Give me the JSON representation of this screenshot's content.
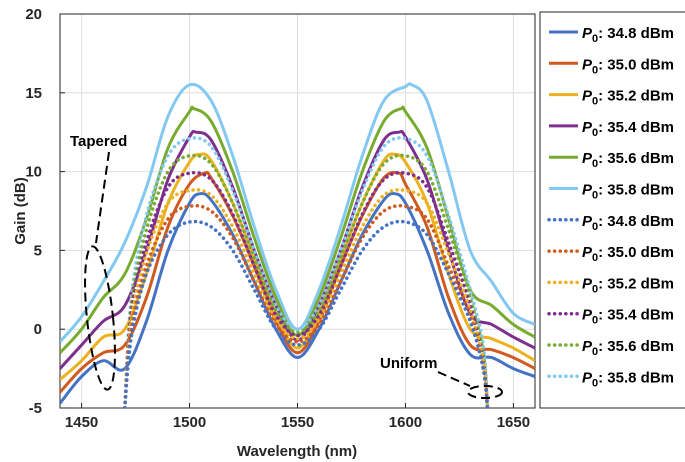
{
  "chart_data": {
    "type": "line",
    "title": "",
    "xlabel": "Wavelength (nm)",
    "ylabel": "Gain (dB)",
    "xlim": [
      1440,
      1660
    ],
    "ylim": [
      -5,
      20
    ],
    "xticks": [
      1450,
      1500,
      1550,
      1600,
      1650
    ],
    "yticks": [
      -5,
      0,
      5,
      10,
      15,
      20
    ],
    "grid": true,
    "legend_position": "outside-right",
    "annotations": [
      {
        "text": "Tapered",
        "target": "solid curves near 1455 nm"
      },
      {
        "text": "Uniform",
        "target": "dotted curves near 1638 nm"
      }
    ],
    "series": [
      {
        "name": "P0: 34.8 dBm",
        "legend_label": "34.8 dBm",
        "color": "#4472C4",
        "style": "solid",
        "x": [
          1440,
          1450,
          1460,
          1470,
          1480,
          1490,
          1500,
          1505,
          1510,
          1520,
          1530,
          1540,
          1550,
          1560,
          1570,
          1580,
          1590,
          1595,
          1600,
          1610,
          1620,
          1630,
          1640,
          1650,
          1660
        ],
        "y": [
          -4.7,
          -3.0,
          -2.0,
          -2.5,
          0.5,
          5.0,
          8.0,
          8.6,
          8.2,
          6.0,
          3.0,
          0.0,
          -1.8,
          0.0,
          3.0,
          6.0,
          8.2,
          8.6,
          8.0,
          5.0,
          1.0,
          -1.6,
          -1.8,
          -2.5,
          -3.0
        ]
      },
      {
        "name": "P0: 35.0 dBm",
        "legend_label": "35.0 dBm",
        "color": "#D05A1F",
        "style": "solid",
        "x": [
          1440,
          1450,
          1460,
          1470,
          1480,
          1490,
          1500,
          1507,
          1510,
          1520,
          1530,
          1540,
          1550,
          1560,
          1570,
          1580,
          1590,
          1597,
          1600,
          1610,
          1620,
          1630,
          1640,
          1650,
          1660
        ],
        "y": [
          -4.0,
          -2.5,
          -1.5,
          -1.0,
          2.0,
          6.5,
          9.2,
          9.9,
          9.6,
          7.2,
          4.0,
          0.5,
          -1.5,
          0.5,
          4.0,
          7.2,
          9.6,
          9.9,
          9.2,
          6.5,
          2.0,
          -1.0,
          -1.3,
          -1.8,
          -2.5
        ]
      },
      {
        "name": "P0: 35.2 dBm",
        "legend_label": "35.2 dBm",
        "color": "#EDB120",
        "style": "solid",
        "x": [
          1440,
          1450,
          1460,
          1470,
          1480,
          1490,
          1500,
          1505,
          1510,
          1520,
          1530,
          1540,
          1550,
          1560,
          1570,
          1580,
          1590,
          1595,
          1600,
          1610,
          1620,
          1630,
          1640,
          1650,
          1660
        ],
        "y": [
          -3.2,
          -2.0,
          -0.5,
          0.0,
          3.5,
          8.0,
          10.6,
          11.1,
          10.7,
          8.0,
          4.5,
          1.0,
          -1.2,
          1.0,
          4.5,
          8.0,
          10.7,
          11.1,
          10.6,
          8.0,
          3.5,
          0.0,
          -0.6,
          -1.2,
          -2.0
        ]
      },
      {
        "name": "P0: 35.4 dBm",
        "legend_label": "35.4 dBm",
        "color": "#7E2F8E",
        "style": "solid",
        "x": [
          1440,
          1450,
          1460,
          1470,
          1480,
          1490,
          1500,
          1503,
          1510,
          1520,
          1530,
          1540,
          1550,
          1560,
          1570,
          1580,
          1590,
          1597,
          1600,
          1610,
          1620,
          1630,
          1640,
          1650,
          1660
        ],
        "y": [
          -2.5,
          -1.0,
          0.5,
          1.5,
          5.0,
          9.5,
          12.2,
          12.5,
          12.0,
          9.0,
          5.0,
          1.5,
          -0.7,
          1.5,
          5.0,
          9.0,
          12.0,
          12.5,
          12.2,
          9.5,
          5.0,
          1.0,
          0.3,
          -0.5,
          -1.2
        ]
      },
      {
        "name": "P0: 35.6 dBm",
        "legend_label": "35.6 dBm",
        "color": "#77AC30",
        "style": "solid",
        "x": [
          1440,
          1450,
          1460,
          1470,
          1480,
          1490,
          1500,
          1502,
          1510,
          1520,
          1530,
          1540,
          1550,
          1560,
          1570,
          1580,
          1590,
          1598,
          1600,
          1610,
          1620,
          1630,
          1640,
          1650,
          1660
        ],
        "y": [
          -1.5,
          0.0,
          2.0,
          3.5,
          7.0,
          11.5,
          13.8,
          14.0,
          13.2,
          10.0,
          5.8,
          2.0,
          -0.4,
          2.0,
          5.8,
          10.0,
          13.2,
          14.0,
          13.8,
          11.5,
          7.0,
          2.5,
          1.5,
          0.3,
          -0.5
        ]
      },
      {
        "name": "P0: 35.8 dBm",
        "legend_label": "35.8 dBm",
        "color": "#82C8F0",
        "style": "solid",
        "x": [
          1440,
          1450,
          1460,
          1470,
          1480,
          1490,
          1500,
          1510,
          1520,
          1530,
          1540,
          1550,
          1560,
          1570,
          1580,
          1590,
          1600,
          1603,
          1610,
          1620,
          1630,
          1640,
          1650,
          1660
        ],
        "y": [
          -0.8,
          0.8,
          3.0,
          5.5,
          9.0,
          13.5,
          15.5,
          14.5,
          11.0,
          6.5,
          2.5,
          0.0,
          2.5,
          6.5,
          11.0,
          14.5,
          15.4,
          15.5,
          14.5,
          10.0,
          5.0,
          3.0,
          1.0,
          0.3
        ]
      },
      {
        "name": "P0: 34.8 dBm",
        "legend_label": "34.8 dBm",
        "color": "#4472C4",
        "style": "dotted",
        "x": [
          1470,
          1473,
          1480,
          1490,
          1500,
          1510,
          1520,
          1530,
          1540,
          1550,
          1560,
          1570,
          1580,
          1590,
          1600,
          1610,
          1620,
          1630,
          1636,
          1638
        ],
        "y": [
          -5.0,
          -0.5,
          3.5,
          6.0,
          6.8,
          6.5,
          5.0,
          2.5,
          0.0,
          -1.0,
          0.0,
          2.5,
          5.0,
          6.5,
          6.8,
          6.0,
          3.5,
          0.5,
          -2.5,
          -5.0
        ]
      },
      {
        "name": "P0: 35.0 dBm",
        "legend_label": "35.0 dBm",
        "color": "#D05A1F",
        "style": "dotted",
        "x": [
          1470,
          1473,
          1480,
          1490,
          1500,
          1510,
          1520,
          1530,
          1540,
          1550,
          1560,
          1570,
          1580,
          1590,
          1600,
          1610,
          1620,
          1630,
          1636,
          1638
        ],
        "y": [
          -5.0,
          0.0,
          4.0,
          7.0,
          7.8,
          7.5,
          5.8,
          3.0,
          0.3,
          -0.8,
          0.3,
          3.0,
          5.8,
          7.5,
          7.8,
          7.0,
          4.0,
          0.8,
          -2.5,
          -5.0
        ]
      },
      {
        "name": "P0: 35.2 dBm",
        "legend_label": "35.2 dBm",
        "color": "#EDB120",
        "style": "dotted",
        "x": [
          1470,
          1473,
          1480,
          1490,
          1500,
          1510,
          1520,
          1530,
          1540,
          1550,
          1560,
          1570,
          1580,
          1590,
          1600,
          1610,
          1620,
          1630,
          1636,
          1638
        ],
        "y": [
          -5.0,
          0.5,
          4.8,
          8.0,
          8.8,
          8.5,
          6.5,
          3.5,
          0.6,
          -0.6,
          0.6,
          3.5,
          6.5,
          8.5,
          8.8,
          8.0,
          4.8,
          1.2,
          -2.0,
          -5.0
        ]
      },
      {
        "name": "P0: 35.4 dBm",
        "legend_label": "35.4 dBm",
        "color": "#7E2F8E",
        "style": "dotted",
        "x": [
          1470,
          1473,
          1480,
          1490,
          1500,
          1510,
          1520,
          1530,
          1540,
          1550,
          1560,
          1570,
          1580,
          1590,
          1600,
          1610,
          1620,
          1630,
          1636,
          1638
        ],
        "y": [
          -5.0,
          1.0,
          5.5,
          9.0,
          9.9,
          9.5,
          7.3,
          4.0,
          0.9,
          -0.4,
          0.9,
          4.0,
          7.3,
          9.5,
          9.9,
          9.0,
          5.5,
          1.5,
          -2.0,
          -5.0
        ]
      },
      {
        "name": "P0: 35.6 dBm",
        "legend_label": "35.6 dBm",
        "color": "#77AC30",
        "style": "dotted",
        "x": [
          1470,
          1473,
          1480,
          1490,
          1500,
          1510,
          1520,
          1530,
          1540,
          1550,
          1560,
          1570,
          1580,
          1590,
          1600,
          1610,
          1620,
          1630,
          1636,
          1638
        ],
        "y": [
          -5.0,
          1.5,
          6.3,
          10.0,
          11.0,
          10.5,
          8.0,
          4.5,
          1.2,
          -0.2,
          1.2,
          4.5,
          8.0,
          10.5,
          11.0,
          10.0,
          6.3,
          2.0,
          -1.5,
          -5.0
        ]
      },
      {
        "name": "P0: 35.8 dBm",
        "legend_label": "35.8 dBm",
        "color": "#82C8F0",
        "style": "dotted",
        "x": [
          1470,
          1473,
          1480,
          1490,
          1500,
          1510,
          1520,
          1530,
          1540,
          1550,
          1560,
          1570,
          1580,
          1590,
          1600,
          1610,
          1620,
          1630,
          1636,
          1638
        ],
        "y": [
          -5.0,
          2.0,
          7.2,
          11.0,
          12.1,
          11.6,
          8.8,
          5.0,
          1.5,
          0.0,
          1.5,
          5.0,
          8.8,
          11.6,
          12.1,
          11.0,
          7.2,
          2.5,
          -1.0,
          -5.0
        ]
      }
    ]
  }
}
